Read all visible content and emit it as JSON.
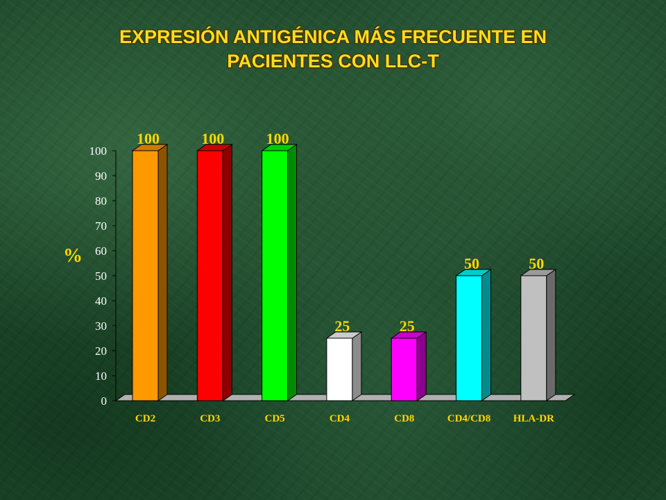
{
  "chart_data": {
    "type": "bar",
    "title_lines": [
      "EXPRESIÓN ANTIGÉNICA MÁS FRECUENTE EN",
      "PACIENTES CON LLC-T"
    ],
    "ylabel": "%",
    "xlabel": "",
    "ylim": [
      0,
      100
    ],
    "yticks": [
      0,
      10,
      20,
      30,
      40,
      50,
      60,
      70,
      80,
      90,
      100
    ],
    "categories": [
      "CD2",
      "CD3",
      "CD5",
      "CD4",
      "CD8",
      "CD4/CD8",
      "HLA-DR"
    ],
    "values": [
      100,
      100,
      100,
      25,
      25,
      50,
      50
    ],
    "value_labels": [
      "100",
      "100",
      "100",
      "25",
      "25",
      "50",
      "50"
    ],
    "colors": [
      "#ff9900",
      "#ff0000",
      "#00ff00",
      "#ffffff",
      "#ff00ff",
      "#00ffff",
      "#c0c0c0"
    ],
    "style": "3d-bar",
    "grid": false,
    "legend": "none"
  }
}
